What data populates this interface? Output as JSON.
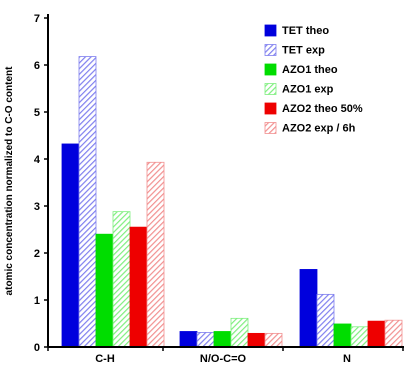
{
  "chart_data": {
    "type": "bar",
    "title": "",
    "xlabel": "",
    "ylabel": "atomic concentration normalized to C-O content",
    "categories": [
      "C-H",
      "N/O-C=O",
      "N"
    ],
    "ylim": [
      0,
      7
    ],
    "yticks": [
      0,
      1,
      2,
      3,
      4,
      5,
      6,
      7
    ],
    "grid": false,
    "legend": "top-right",
    "series": [
      {
        "name": "TET theo",
        "values": [
          4.32,
          0.33,
          1.65
        ],
        "color": "#0000dd",
        "pattern": "solid"
      },
      {
        "name": "TET exp",
        "values": [
          6.18,
          0.31,
          1.12
        ],
        "color": "#7f7fef",
        "pattern": "hatch"
      },
      {
        "name": "AZO1 theo",
        "values": [
          2.4,
          0.33,
          0.49
        ],
        "color": "#00dd00",
        "pattern": "solid"
      },
      {
        "name": "AZO1 exp",
        "values": [
          2.88,
          0.61,
          0.43
        ],
        "color": "#7fef7f",
        "pattern": "hatch"
      },
      {
        "name": "AZO2 theo 50%",
        "values": [
          2.55,
          0.29,
          0.55
        ],
        "color": "#ee0000",
        "pattern": "solid"
      },
      {
        "name": "AZO2 exp  / 6h",
        "values": [
          3.93,
          0.29,
          0.57
        ],
        "color": "#f29090",
        "pattern": "hatch"
      }
    ]
  }
}
